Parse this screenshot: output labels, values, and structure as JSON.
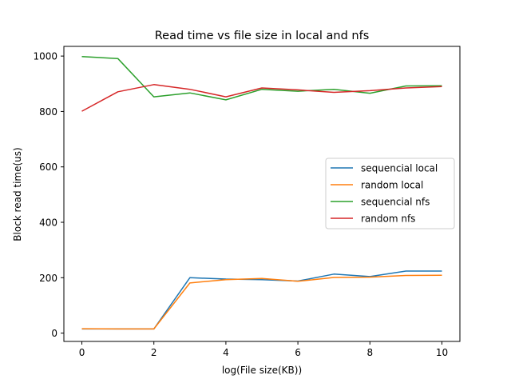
{
  "chart_data": {
    "type": "line",
    "title": "Read time vs file size in local and nfs",
    "xlabel": "log(File size(KB))",
    "ylabel": "Block read time(us)",
    "xlim": [
      -0.5,
      10.5
    ],
    "ylim": [
      -30,
      1035
    ],
    "xticks": [
      0,
      2,
      4,
      6,
      8,
      10
    ],
    "yticks": [
      0,
      200,
      400,
      600,
      800,
      1000
    ],
    "grid": false,
    "legend_position": "center-right",
    "x": [
      0,
      1,
      2,
      3,
      4,
      5,
      6,
      7,
      8,
      9,
      10
    ],
    "series": [
      {
        "name": "sequencial local",
        "color": "#1f77b4",
        "values": [
          15,
          15,
          15,
          200,
          195,
          193,
          188,
          213,
          204,
          224,
          224
        ]
      },
      {
        "name": "random local",
        "color": "#ff7f0e",
        "values": [
          16,
          15,
          15,
          181,
          193,
          197,
          187,
          201,
          202,
          208,
          209
        ]
      },
      {
        "name": "sequencial nfs",
        "color": "#2ca02c",
        "values": [
          998,
          991,
          853,
          867,
          842,
          880,
          873,
          880,
          866,
          892,
          893
        ]
      },
      {
        "name": "random nfs",
        "color": "#d62728",
        "values": [
          801,
          871,
          897,
          880,
          853,
          885,
          878,
          869,
          875,
          885,
          890
        ]
      }
    ]
  }
}
